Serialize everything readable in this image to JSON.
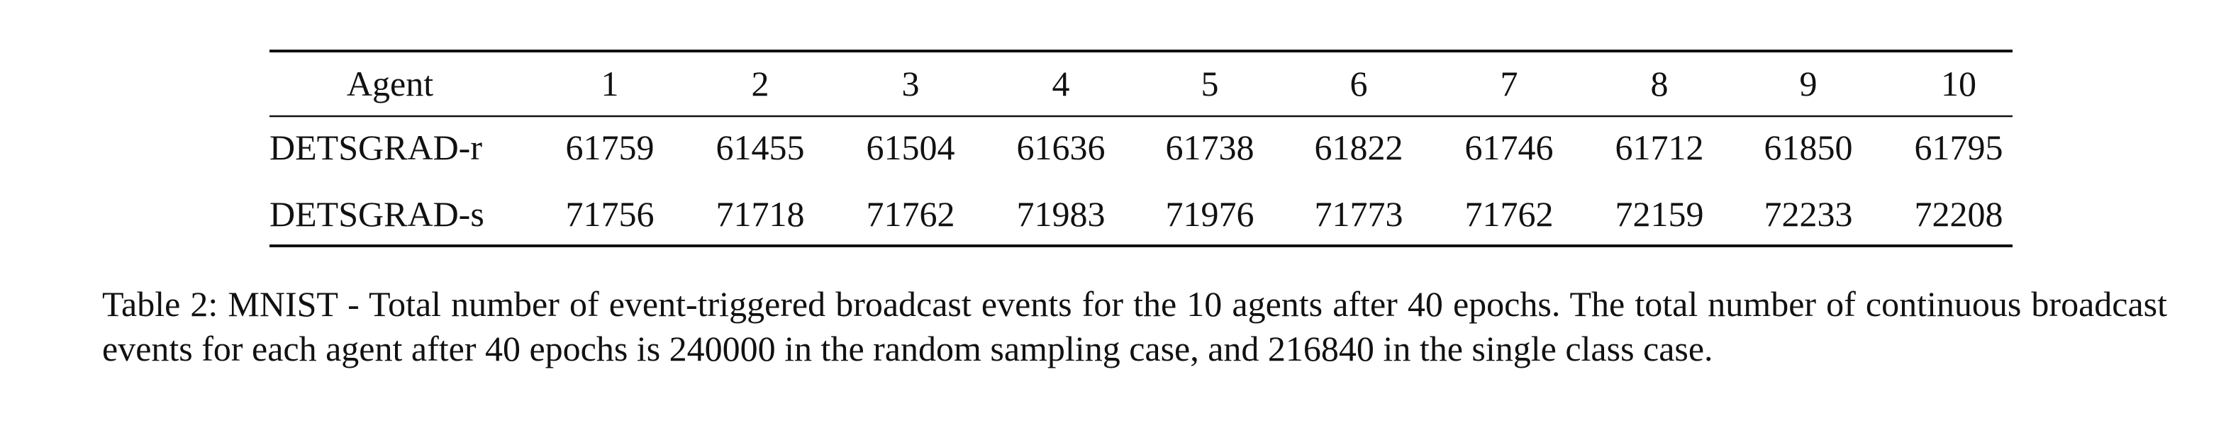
{
  "table": {
    "header": [
      "Agent",
      "1",
      "2",
      "3",
      "4",
      "5",
      "6",
      "7",
      "8",
      "9",
      "10"
    ],
    "rows": [
      [
        "DETSGRAD-r",
        "61759",
        "61455",
        "61504",
        "61636",
        "61738",
        "61822",
        "61746",
        "61712",
        "61850",
        "61795"
      ],
      [
        "DETSGRAD-s",
        "71756",
        "71718",
        "71762",
        "71983",
        "71976",
        "71773",
        "71762",
        "72159",
        "72233",
        "72208"
      ]
    ]
  },
  "caption": "Table 2: MNIST - Total number of event-triggered broadcast events for the 10 agents after 40 epochs. The total number of continuous broadcast events for each agent after 40 epochs is 240000 in the random sampling case, and 216840 in the single class case."
}
